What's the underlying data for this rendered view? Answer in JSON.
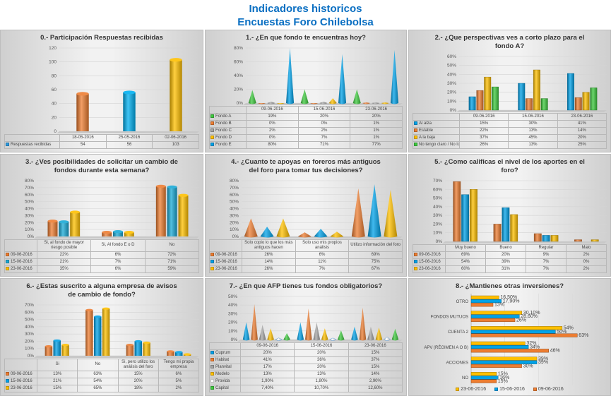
{
  "header": {
    "title_line1": "Indicadores historicos",
    "title_line2": "Encuestas Foro Chilebolsa"
  },
  "chart_data": [
    {
      "type": "bar",
      "mark": "cylinder",
      "title": "0.- Participación Respuestas recibidas",
      "categories": [
        "18-05-2016",
        "25-05-2016",
        "02-06-2016"
      ],
      "bar_colors": [
        "#ED7D31",
        "#00B0F0",
        "#FFC000"
      ],
      "series": [
        {
          "name": "Respuestas recibidas",
          "color": "#2E9BE0",
          "values": [
            54,
            56,
            103
          ],
          "labels": [
            "54",
            "56",
            "103"
          ]
        }
      ],
      "ylim": [
        0,
        120
      ],
      "ytick_labels": [
        "0",
        "20",
        "40",
        "60",
        "80",
        "100",
        "120"
      ]
    },
    {
      "type": "bar",
      "mark": "cone",
      "title": "1.- ¿En que fondo te encuentras hoy?",
      "categories": [
        "09-06-2016",
        "15-06-2016",
        "23-06-2016"
      ],
      "series": [
        {
          "name": "Fondo A",
          "color": "#3EC93E",
          "values": [
            19,
            20,
            20
          ],
          "labels": [
            "19%",
            "20%",
            "20%"
          ]
        },
        {
          "name": "Fondo B",
          "color": "#ED7D31",
          "values": [
            0,
            0,
            1
          ],
          "labels": [
            "0%",
            "0%",
            "1%"
          ]
        },
        {
          "name": "Fondo C",
          "color": "#A5A5A5",
          "values": [
            2,
            2,
            1
          ],
          "labels": [
            "2%",
            "2%",
            "1%"
          ]
        },
        {
          "name": "Fondo D",
          "color": "#FFC000",
          "values": [
            0,
            7,
            1
          ],
          "labels": [
            "0%",
            "7%",
            "1%"
          ]
        },
        {
          "name": "Fondo E",
          "color": "#00A2E8",
          "values": [
            80,
            71,
            77
          ],
          "labels": [
            "80%",
            "71%",
            "77%"
          ]
        }
      ],
      "ylim": [
        0,
        80
      ],
      "ytick_labels": [
        "0%",
        "20%",
        "40%",
        "60%",
        "80%"
      ]
    },
    {
      "type": "bar",
      "mark": "bar",
      "title": "2.- ¿Que perspectivas ves a corto plazo para el fondo A?",
      "categories": [
        "09-06-2016",
        "15-06-2016",
        "23-06-2016"
      ],
      "series": [
        {
          "name": "Al alza",
          "color": "#00A2E8",
          "values": [
            15,
            30,
            41
          ],
          "labels": [
            "15%",
            "30%",
            "41%"
          ]
        },
        {
          "name": "Estable",
          "color": "#ED7D31",
          "values": [
            22,
            13,
            14
          ],
          "labels": [
            "22%",
            "13%",
            "14%"
          ]
        },
        {
          "name": "A la baja",
          "color": "#FFC000",
          "values": [
            37,
            45,
            20
          ],
          "labels": [
            "37%",
            "45%",
            "20%"
          ]
        },
        {
          "name": "No tengo claro / No lo se",
          "color": "#3EC93E",
          "values": [
            26,
            13,
            25
          ],
          "labels": [
            "26%",
            "13%",
            "25%"
          ]
        }
      ],
      "ylim": [
        0,
        60
      ],
      "ytick_labels": [
        "0%",
        "10%",
        "20%",
        "30%",
        "40%",
        "50%",
        "60%"
      ]
    },
    {
      "type": "bar",
      "mark": "cylinder",
      "title": "3.- ¿Ves posibilidades de solicitar un cambio de fondos durante esta semana?",
      "categories": [
        "Si, al fondo de mayor riesgo posible",
        "Si, Al fondo E o D",
        "No"
      ],
      "series": [
        {
          "name": "09-06-2016",
          "color": "#ED7D31",
          "values": [
            22,
            6,
            72
          ],
          "labels": [
            "22%",
            "6%",
            "72%"
          ]
        },
        {
          "name": "15-06-2016",
          "color": "#1AA9D6",
          "values": [
            21,
            7,
            71
          ],
          "labels": [
            "21%",
            "7%",
            "71%"
          ]
        },
        {
          "name": "23-06-2016",
          "color": "#FFC000",
          "values": [
            35,
            6,
            59
          ],
          "labels": [
            "35%",
            "6%",
            "59%"
          ]
        }
      ],
      "ylim": [
        0,
        80
      ],
      "ytick_labels": [
        "0%",
        "10%",
        "20%",
        "30%",
        "40%",
        "50%",
        "60%",
        "70%",
        "80%"
      ]
    },
    {
      "type": "bar",
      "mark": "cone",
      "title": "4.- ¿Cuanto te apoyas en foreros más antiguos del foro para tomar tus decisiones?",
      "categories": [
        "Solo copio lo que los más antiguos hacen",
        "Solo uso mis propios análisis",
        "Utilizo información del foro"
      ],
      "series": [
        {
          "name": "09-06-2016",
          "color": "#ED7D31",
          "values": [
            26,
            6,
            69
          ],
          "labels": [
            "26%",
            "6%",
            "69%"
          ]
        },
        {
          "name": "15-06-2016",
          "color": "#00A2E8",
          "values": [
            14,
            11,
            75
          ],
          "labels": [
            "14%",
            "11%",
            "75%"
          ]
        },
        {
          "name": "23-06-2016",
          "color": "#FFC000",
          "values": [
            26,
            7,
            67
          ],
          "labels": [
            "26%",
            "7%",
            "67%"
          ]
        }
      ],
      "ylim": [
        0,
        80
      ],
      "ytick_labels": [
        "0%",
        "10%",
        "20%",
        "30%",
        "40%",
        "50%",
        "60%",
        "70%",
        "80%"
      ]
    },
    {
      "type": "bar",
      "mark": "bar",
      "title": "5.- ¿Como calificas el nivel de los aportes en el foro?",
      "categories": [
        "Muy bueno",
        "Bueno",
        "Regular",
        "Malo"
      ],
      "series": [
        {
          "name": "09-06-2016",
          "color": "#ED7D31",
          "values": [
            69,
            20,
            9,
            2
          ],
          "labels": [
            "69%",
            "20%",
            "9%",
            "2%"
          ]
        },
        {
          "name": "15-06-2016",
          "color": "#00A2E8",
          "values": [
            54,
            39,
            7,
            0
          ],
          "labels": [
            "54%",
            "39%",
            "7%",
            "0%"
          ]
        },
        {
          "name": "23-06-2016",
          "color": "#FFC000",
          "values": [
            60,
            31,
            7,
            2
          ],
          "labels": [
            "60%",
            "31%",
            "7%",
            "2%"
          ]
        }
      ],
      "ylim": [
        0,
        70
      ],
      "ytick_labels": [
        "0%",
        "10%",
        "20%",
        "30%",
        "40%",
        "50%",
        "60%",
        "70%"
      ]
    },
    {
      "type": "bar",
      "mark": "cylinder",
      "title": "6.- ¿Estas suscrito a alguna empresa de avisos de cambio de fondo?",
      "categories": [
        "Si",
        "No",
        "Si, pero utilizo los análisis del foro",
        "Tengo mi propia empresa"
      ],
      "series": [
        {
          "name": "09-06-2016",
          "color": "#ED7D31",
          "values": [
            13,
            63,
            15,
            6
          ],
          "labels": [
            "13%",
            "63%",
            "15%",
            "6%"
          ]
        },
        {
          "name": "15-06-2016",
          "color": "#00A2E8",
          "values": [
            21,
            54,
            20,
            5
          ],
          "labels": [
            "21%",
            "54%",
            "20%",
            "5%"
          ]
        },
        {
          "name": "23-06-2016",
          "color": "#FFC000",
          "values": [
            15,
            65,
            18,
            2
          ],
          "labels": [
            "15%",
            "65%",
            "18%",
            "2%"
          ]
        }
      ],
      "ylim": [
        0,
        70
      ],
      "ytick_labels": [
        "0%",
        "10%",
        "20%",
        "30%",
        "40%",
        "50%",
        "60%",
        "70%"
      ]
    },
    {
      "type": "bar",
      "mark": "cone",
      "title": "7.- ¿En que AFP tienes tus fondos obligatorios?",
      "categories": [
        "09-06-2016",
        "15-06-2016",
        "23-06-2016"
      ],
      "series": [
        {
          "name": "Cuprum",
          "color": "#00A2E8",
          "values": [
            20,
            20,
            15
          ],
          "labels": [
            "20%",
            "20%",
            "15%"
          ]
        },
        {
          "name": "Habitat",
          "color": "#ED7D31",
          "values": [
            41,
            36,
            37
          ],
          "labels": [
            "41%",
            "36%",
            "37%"
          ]
        },
        {
          "name": "Planvital",
          "color": "#A5A5A5",
          "values": [
            17,
            20,
            15
          ],
          "labels": [
            "17%",
            "20%",
            "15%"
          ]
        },
        {
          "name": "Modelo",
          "color": "#FFC000",
          "values": [
            13,
            13,
            14
          ],
          "labels": [
            "13%",
            "13%",
            "14%"
          ]
        },
        {
          "name": "Provida",
          "color": "#FFFFFF",
          "values": [
            1.9,
            1.8,
            2.9
          ],
          "labels": [
            "1,90%",
            "1,80%",
            "2,90%"
          ]
        },
        {
          "name": "Capital",
          "color": "#3EC93E",
          "values": [
            7.4,
            10.7,
            12.6
          ],
          "labels": [
            "7,40%",
            "10,70%",
            "12,60%"
          ]
        }
      ],
      "ylim": [
        0,
        50
      ],
      "ytick_labels": [
        "0%",
        "10%",
        "20%",
        "30%",
        "40%",
        "50%"
      ]
    },
    {
      "type": "hbar",
      "mark": "bar",
      "title": "8.- ¿Mantienes otras inversiones?",
      "categories": [
        "OTRO",
        "FONDOS MUTUOS",
        "CUENTA 2",
        "APV (RÉGIMEN A O B)",
        "ACCIONES",
        "NO"
      ],
      "series": [
        {
          "name": "23-06-2016",
          "color": "#FFC000",
          "values": [
            16.5,
            30.1,
            54,
            32,
            39,
            15
          ],
          "labels": [
            "16,50%",
            "30,10%",
            "54%",
            "32%",
            "39%",
            "15%"
          ]
        },
        {
          "name": "15-06-2016",
          "color": "#00A2E8",
          "values": [
            17.9,
            28.6,
            50,
            34,
            39,
            16
          ],
          "labels": [
            "17,90%",
            "28,60%",
            "50%",
            "34%",
            "39%",
            "16%"
          ]
        },
        {
          "name": "09-06-2016",
          "color": "#ED7D31",
          "values": [
            13,
            26,
            63,
            46,
            30,
            15
          ],
          "labels": [
            "13%",
            "26%",
            "63%",
            "46%",
            "30%",
            "15%"
          ]
        }
      ],
      "xlim": [
        0,
        70
      ],
      "legend": "bottom"
    }
  ]
}
